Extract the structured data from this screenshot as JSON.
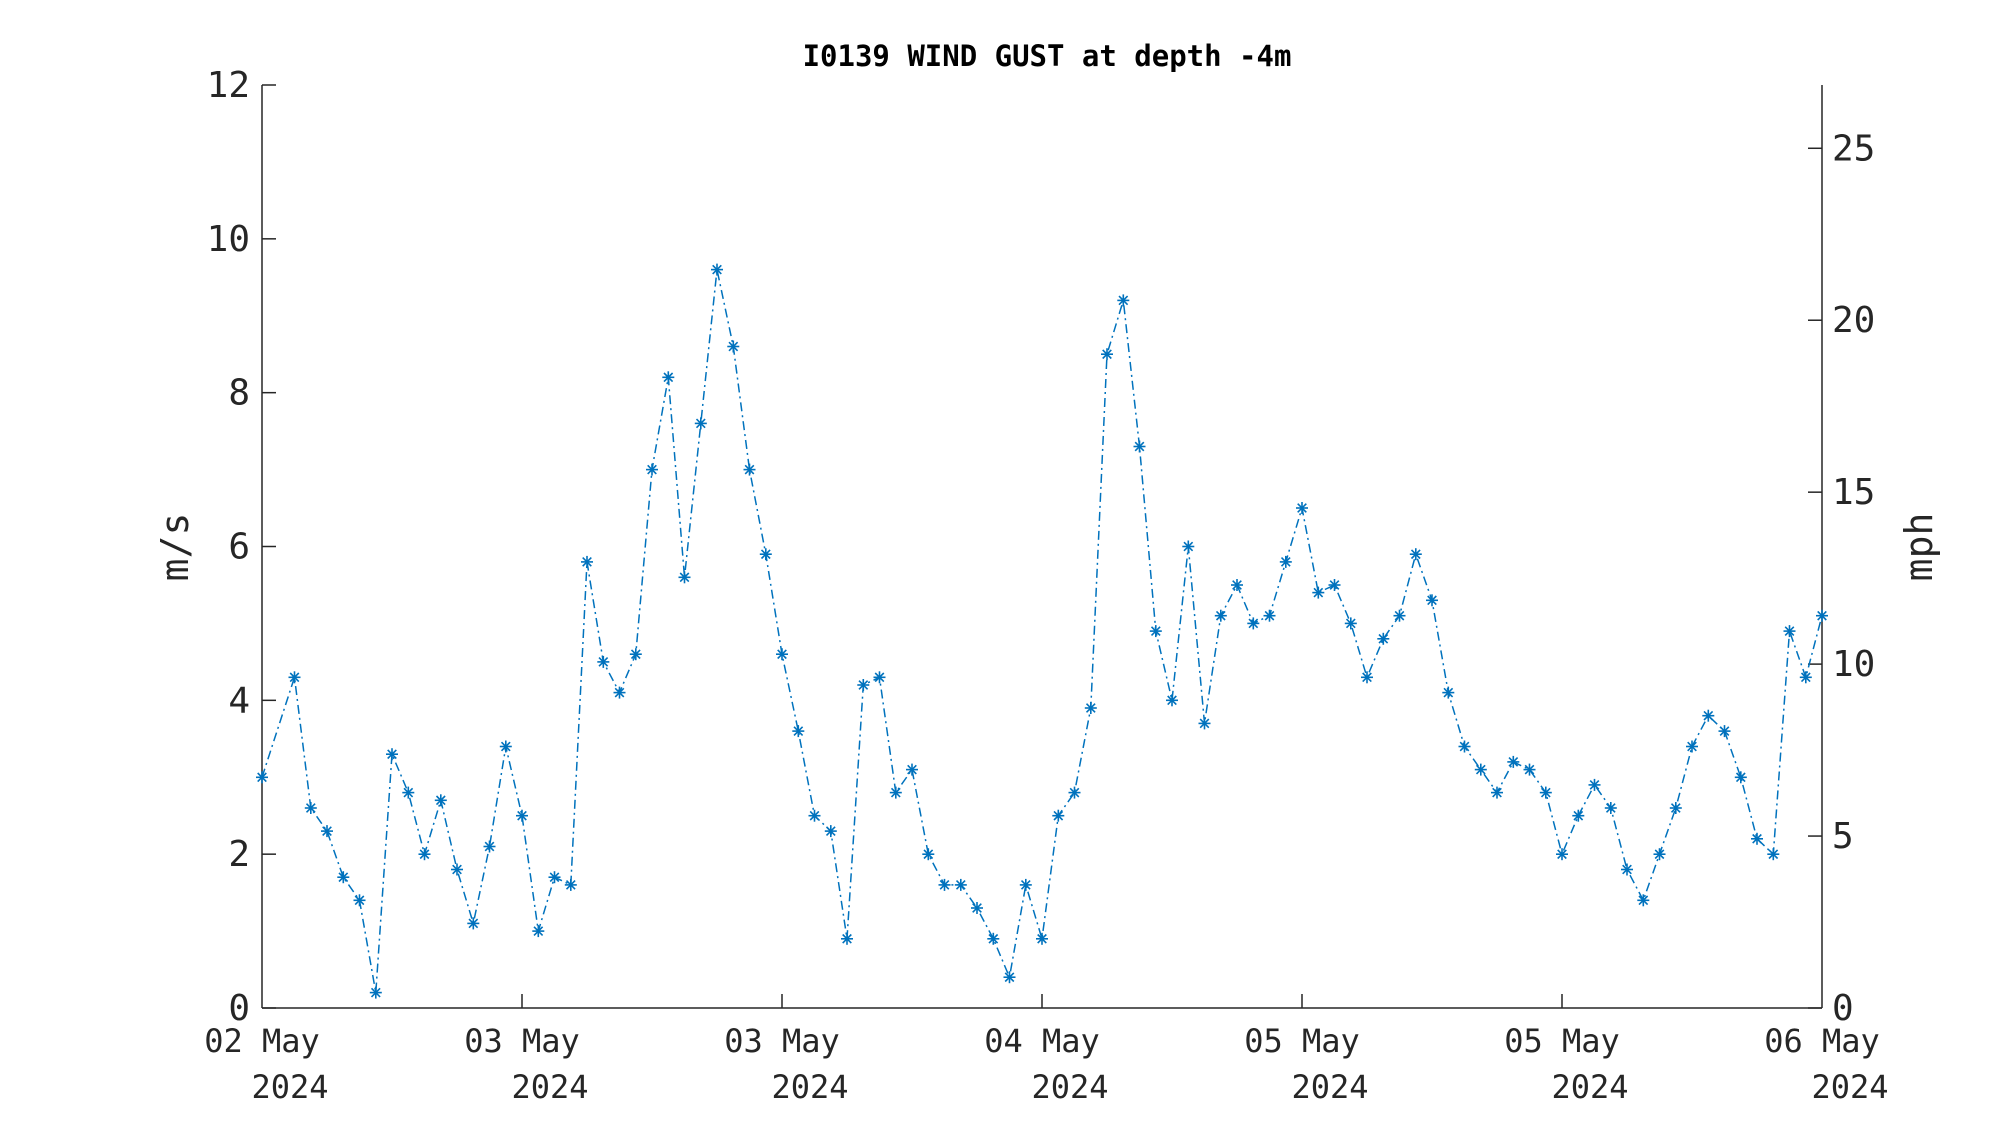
{
  "colors": {
    "series": "#0072BD",
    "axis": "#262626",
    "background": "#ffffff"
  },
  "chart_data": {
    "type": "line",
    "title": "I0139 WIND GUST at depth -4m",
    "ylabel": "m/s",
    "y2label": "mph",
    "ylim": [
      0,
      12
    ],
    "y2lim": [
      0,
      26.84
    ],
    "yticks": [
      "0",
      "2",
      "4",
      "6",
      "8",
      "10",
      "12"
    ],
    "y2ticks": [
      "0",
      "5",
      "10",
      "15",
      "20",
      "25"
    ],
    "xlim": [
      "2024-05-02 00:00",
      "2024-05-06 00:00"
    ],
    "xticks": [
      {
        "line1": "02 May",
        "line2": "2024"
      },
      {
        "line1": "03 May",
        "line2": "2024"
      },
      {
        "line1": "03 May",
        "line2": "2024"
      },
      {
        "line1": "04 May",
        "line2": "2024"
      },
      {
        "line1": "05 May",
        "line2": "2024"
      },
      {
        "line1": "05 May",
        "line2": "2024"
      },
      {
        "line1": "06 May",
        "line2": "2024"
      }
    ],
    "grid": false,
    "marker": "asterisk",
    "line_style": "dash-dot",
    "series": [
      {
        "x": [
          "2024-05-02 00:00",
          "2024-05-02 02:00",
          "2024-05-02 03:00",
          "2024-05-02 04:00",
          "2024-05-02 05:00",
          "2024-05-02 06:00",
          "2024-05-02 07:00",
          "2024-05-02 08:00",
          "2024-05-02 09:00",
          "2024-05-02 10:00",
          "2024-05-02 11:00",
          "2024-05-02 12:00",
          "2024-05-02 13:00",
          "2024-05-02 14:00",
          "2024-05-02 15:00",
          "2024-05-02 16:00",
          "2024-05-02 17:00",
          "2024-05-02 18:00",
          "2024-05-02 19:00",
          "2024-05-02 20:00",
          "2024-05-02 21:00",
          "2024-05-02 22:00",
          "2024-05-02 23:00",
          "2024-05-03 00:00",
          "2024-05-03 01:00",
          "2024-05-03 02:00",
          "2024-05-03 03:00",
          "2024-05-03 04:00",
          "2024-05-03 05:00",
          "2024-05-03 06:00",
          "2024-05-03 07:00",
          "2024-05-03 08:00",
          "2024-05-03 09:00",
          "2024-05-03 10:00",
          "2024-05-03 11:00",
          "2024-05-03 12:00",
          "2024-05-03 13:00",
          "2024-05-03 14:00",
          "2024-05-03 15:00",
          "2024-05-03 16:00",
          "2024-05-03 17:00",
          "2024-05-03 18:00",
          "2024-05-03 19:00",
          "2024-05-03 20:00",
          "2024-05-03 21:00",
          "2024-05-03 22:00",
          "2024-05-03 23:00",
          "2024-05-04 00:00",
          "2024-05-04 01:00",
          "2024-05-04 02:00",
          "2024-05-04 03:00",
          "2024-05-04 04:00",
          "2024-05-04 05:00",
          "2024-05-04 06:00",
          "2024-05-04 07:00",
          "2024-05-04 08:00",
          "2024-05-04 09:00",
          "2024-05-04 10:00",
          "2024-05-04 11:00",
          "2024-05-04 12:00",
          "2024-05-04 13:00",
          "2024-05-04 14:00",
          "2024-05-04 15:00",
          "2024-05-04 16:00",
          "2024-05-04 17:00",
          "2024-05-04 18:00",
          "2024-05-04 19:00",
          "2024-05-04 20:00",
          "2024-05-04 21:00",
          "2024-05-04 22:00",
          "2024-05-04 23:00",
          "2024-05-05 00:00",
          "2024-05-05 01:00",
          "2024-05-05 02:00",
          "2024-05-05 03:00",
          "2024-05-05 04:00",
          "2024-05-05 05:00",
          "2024-05-05 06:00",
          "2024-05-05 07:00",
          "2024-05-05 08:00",
          "2024-05-05 09:00",
          "2024-05-05 10:00",
          "2024-05-05 11:00",
          "2024-05-05 12:00",
          "2024-05-05 13:00",
          "2024-05-05 14:00",
          "2024-05-05 15:00",
          "2024-05-05 16:00",
          "2024-05-05 17:00",
          "2024-05-05 18:00",
          "2024-05-05 19:00",
          "2024-05-05 20:00",
          "2024-05-05 21:00",
          "2024-05-05 22:00",
          "2024-05-05 23:00",
          "2024-05-06 00:00"
        ],
        "y": [
          3.0,
          4.3,
          2.6,
          2.3,
          1.7,
          1.4,
          0.2,
          3.3,
          2.8,
          2.0,
          2.7,
          1.8,
          1.1,
          2.1,
          3.4,
          2.5,
          1.0,
          1.7,
          1.6,
          5.8,
          4.5,
          4.1,
          4.6,
          7.0,
          8.2,
          5.6,
          7.6,
          9.6,
          8.6,
          7.0,
          5.9,
          4.6,
          3.6,
          2.5,
          2.3,
          0.9,
          4.2,
          4.3,
          2.8,
          3.1,
          2.0,
          1.6,
          1.6,
          1.3,
          0.9,
          0.4,
          1.6,
          0.9,
          2.5,
          2.8,
          3.9,
          8.5,
          9.2,
          7.3,
          4.9,
          4.0,
          6.0,
          3.7,
          5.1,
          5.5,
          5.0,
          5.1,
          5.8,
          6.5,
          5.4,
          5.5,
          5.0,
          4.3,
          4.8,
          5.1,
          5.9,
          5.3,
          4.1,
          3.4,
          3.1,
          2.8,
          3.2,
          3.1,
          2.8,
          2.0,
          2.5,
          2.9,
          2.6,
          1.8,
          1.4,
          2.0,
          2.6,
          3.4,
          3.8,
          3.6,
          3.0,
          2.2,
          2.0,
          4.9,
          4.3,
          5.1
        ]
      }
    ]
  }
}
